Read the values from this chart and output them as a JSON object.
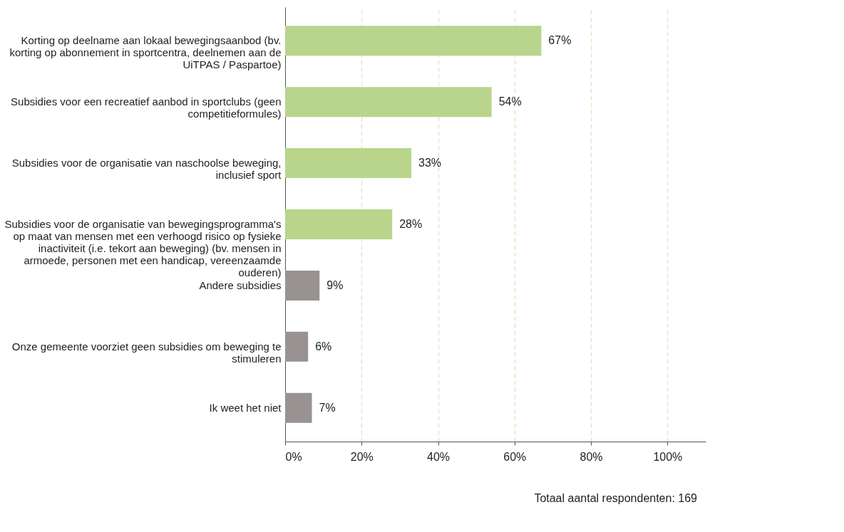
{
  "chart_data": {
    "type": "bar",
    "orientation": "horizontal",
    "categories": [
      "Korting op deelname aan lokaal bewegingsaanbod (bv. korting op abonnement in sportcentra, deelnemen aan de UiTPAS / Paspartoe)",
      "Subsidies voor een recreatief aanbod in sportclubs (geen competitieformules)",
      "Subsidies voor de organisatie van naschoolse beweging, inclusief sport",
      "Subsidies voor de organisatie van bewegingsprogramma's op maat van mensen met een verhoogd risico op fysieke inactiviteit (i.e. tekort aan beweging) (bv. mensen in armoede, personen met een handicap, vereenzaamde ouderen)",
      "Andere subsidies",
      "Onze gemeente voorziet geen subsidies om beweging te stimuleren",
      "Ik weet het niet"
    ],
    "values": [
      67,
      54,
      33,
      28,
      9,
      6,
      7
    ],
    "value_labels": [
      "67%",
      "54%",
      "33%",
      "28%",
      "9%",
      "6%",
      "7%"
    ],
    "colors": [
      "#b8d58b",
      "#b8d58b",
      "#b8d58b",
      "#b8d58b",
      "#989392",
      "#989392",
      "#989392"
    ],
    "xlim": [
      0,
      110
    ],
    "xticks": [
      {
        "value": 0,
        "label": "0%"
      },
      {
        "value": 20,
        "label": "20%"
      },
      {
        "value": 40,
        "label": "40%"
      },
      {
        "value": 60,
        "label": "60%"
      },
      {
        "value": 80,
        "label": "80%"
      },
      {
        "value": 100,
        "label": "100%"
      }
    ],
    "grid": "x",
    "annotations": [
      "Totaal aantal respondenten: 169"
    ]
  }
}
